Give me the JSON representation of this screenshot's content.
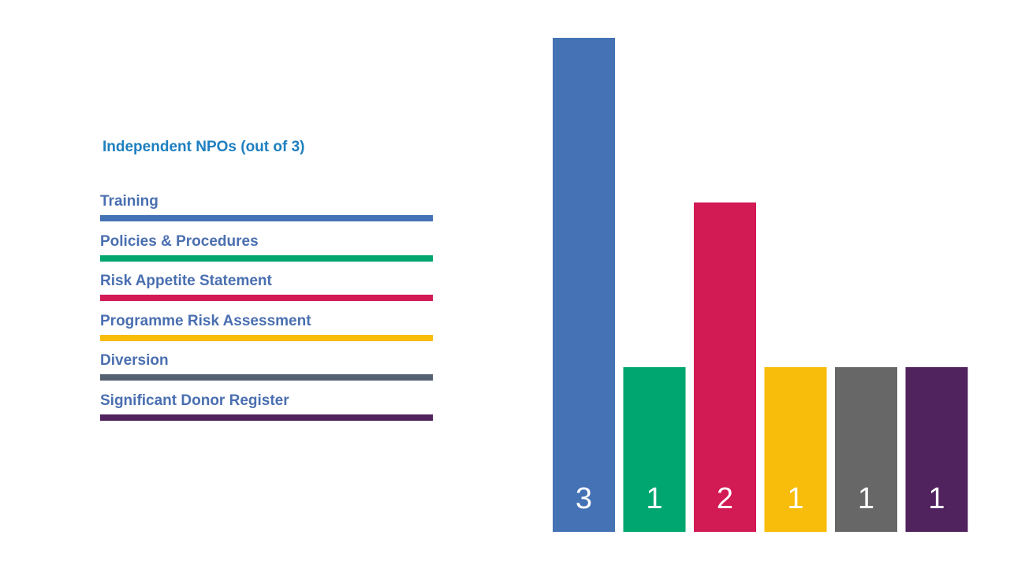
{
  "chart_data": {
    "type": "bar",
    "title": "Independent NPOs (out of 3)",
    "categories": [
      "Training",
      "Policies & Procedures",
      "Risk Appetite Statement",
      "Programme Risk Assessment",
      "Diversion",
      "Significant Donor Register"
    ],
    "values": [
      3,
      1,
      2,
      1,
      1,
      1
    ],
    "colors": [
      "#4472b4",
      "#00a66f",
      "#d21a55",
      "#f8bc0a",
      "#676767",
      "#50235e"
    ],
    "legend_line_colors": [
      "#4472b4",
      "#00a66f",
      "#d21a55",
      "#f8bc0a",
      "#556071",
      "#50235e"
    ],
    "ylim": [
      0,
      3
    ],
    "grid": false,
    "legend_placement": "left"
  }
}
